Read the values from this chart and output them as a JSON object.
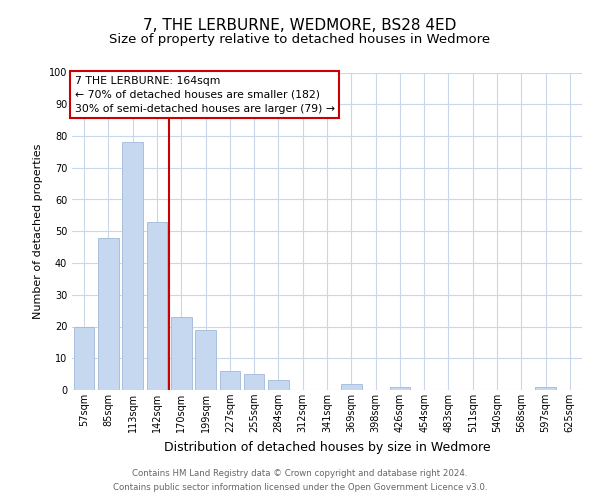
{
  "title": "7, THE LERBURNE, WEDMORE, BS28 4ED",
  "subtitle": "Size of property relative to detached houses in Wedmore",
  "xlabel": "Distribution of detached houses by size in Wedmore",
  "ylabel": "Number of detached properties",
  "bar_labels": [
    "57sqm",
    "85sqm",
    "113sqm",
    "142sqm",
    "170sqm",
    "199sqm",
    "227sqm",
    "255sqm",
    "284sqm",
    "312sqm",
    "341sqm",
    "369sqm",
    "398sqm",
    "426sqm",
    "454sqm",
    "483sqm",
    "511sqm",
    "540sqm",
    "568sqm",
    "597sqm",
    "625sqm"
  ],
  "bar_values": [
    20,
    48,
    78,
    53,
    23,
    19,
    6,
    5,
    3,
    0,
    0,
    2,
    0,
    1,
    0,
    0,
    0,
    0,
    0,
    1,
    0
  ],
  "bar_color": "#c5d8f0",
  "bar_edge_color": "#a0b8d8",
  "vline_index": 3.5,
  "vline_color": "#cc0000",
  "annotation_box_text": "7 THE LERBURNE: 164sqm\n← 70% of detached houses are smaller (182)\n30% of semi-detached houses are larger (79) →",
  "ylim": [
    0,
    100
  ],
  "yticks": [
    0,
    10,
    20,
    30,
    40,
    50,
    60,
    70,
    80,
    90,
    100
  ],
  "footnote1": "Contains HM Land Registry data © Crown copyright and database right 2024.",
  "footnote2": "Contains public sector information licensed under the Open Government Licence v3.0.",
  "background_color": "#ffffff",
  "grid_color": "#c8d8e8",
  "title_fontsize": 11,
  "subtitle_fontsize": 9.5,
  "xlabel_fontsize": 9,
  "ylabel_fontsize": 8,
  "tick_fontsize": 7,
  "annotation_fontsize": 7.8,
  "footnote_fontsize": 6.2
}
